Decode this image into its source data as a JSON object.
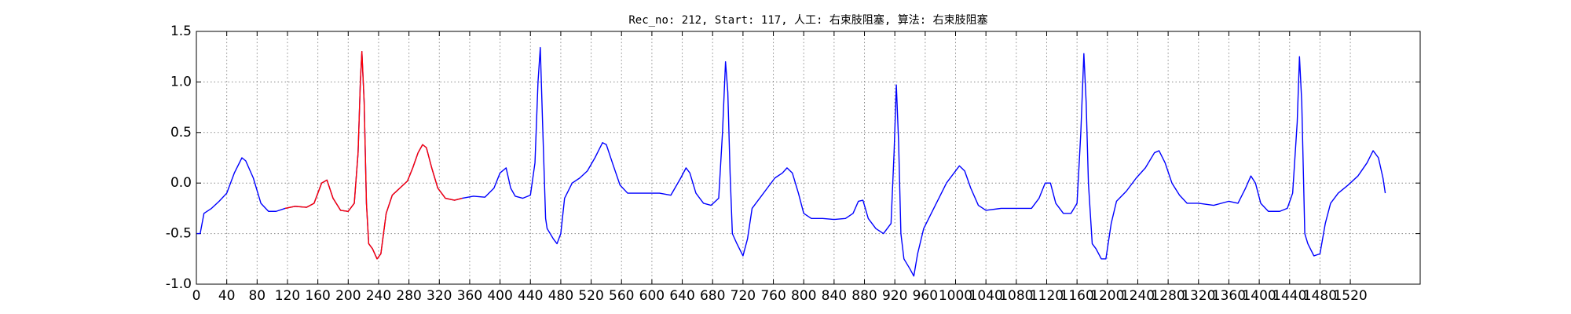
{
  "chart_data": {
    "type": "line",
    "title": "Rec_no: 212, Start: 117, 人工: 右束肢阻塞, 算法: 右束肢阻塞",
    "xlim": [
      0,
      1612
    ],
    "ylim": [
      -1.0,
      1.5
    ],
    "xticks": [
      0,
      40,
      80,
      120,
      160,
      200,
      240,
      280,
      320,
      360,
      400,
      440,
      480,
      520,
      560,
      600,
      640,
      680,
      720,
      760,
      800,
      840,
      880,
      920,
      960,
      1000,
      1040,
      1080,
      1120,
      1160,
      1200,
      1240,
      1280,
      1320,
      1360,
      1400,
      1440,
      1480,
      1520
    ],
    "yticks": [
      {
        "value": -1.0,
        "label": "-1.0"
      },
      -0.5,
      {
        "value": 0.0,
        "label": "0.0"
      },
      0.5,
      {
        "value": 1.0,
        "label": "1.0"
      },
      {
        "value": 1.5,
        "label": "1.5"
      }
    ],
    "grid": true,
    "series": [
      {
        "color": "#0000ff",
        "x": [
          0,
          5,
          10,
          20,
          30,
          40,
          50,
          60,
          65,
          75,
          85,
          95,
          105,
          117,
          130,
          145,
          155,
          165,
          172,
          180,
          190,
          200,
          208,
          213,
          216,
          218,
          221,
          224,
          227,
          232,
          238,
          243,
          250,
          258,
          268,
          278,
          285,
          292,
          298,
          303,
          310,
          318,
          328,
          340,
          350,
          365,
          380,
          392,
          400,
          408,
          414,
          420,
          430,
          440,
          446,
          450,
          453,
          456,
          460,
          462,
          470,
          475,
          480,
          485,
          495,
          505,
          515,
          525,
          535,
          540,
          548,
          558,
          568,
          580,
          595,
          610,
          625,
          638,
          645,
          650,
          658,
          668,
          678,
          688,
          693,
          697,
          700,
          703,
          706,
          712,
          720,
          726,
          732,
          742,
          752,
          762,
          772,
          778,
          785,
          793,
          800,
          810,
          825,
          840,
          855,
          865,
          872,
          878,
          885,
          895,
          905,
          915,
          919,
          922,
          925,
          928,
          932,
          940,
          945,
          950,
          958,
          968,
          978,
          988,
          998,
          1005,
          1012,
          1020,
          1030,
          1040,
          1060,
          1080,
          1100,
          1110,
          1118,
          1125,
          1132,
          1142,
          1152,
          1160,
          1165,
          1169,
          1172,
          1175,
          1180,
          1185,
          1192,
          1198,
          1205,
          1212,
          1225,
          1238,
          1250,
          1262,
          1268,
          1276,
          1285,
          1295,
          1305,
          1320,
          1340,
          1360,
          1372,
          1382,
          1389,
          1395,
          1402,
          1412,
          1427,
          1437,
          1444,
          1450,
          1453,
          1456,
          1460,
          1464,
          1472,
          1480,
          1487,
          1494,
          1504,
          1517,
          1530,
          1542,
          1550,
          1557,
          1563,
          1566
        ],
        "values": [
          -0.5,
          -0.5,
          -0.3,
          -0.25,
          -0.18,
          -0.1,
          0.1,
          0.25,
          0.22,
          0.05,
          -0.2,
          -0.28,
          -0.28,
          -0.25,
          -0.23,
          -0.24,
          -0.2,
          0,
          0.03,
          -0.15,
          -0.27,
          -0.28,
          -0.2,
          0.3,
          1.0,
          1.3,
          0.8,
          -0.2,
          -0.6,
          -0.65,
          -0.75,
          -0.7,
          -0.3,
          -0.12,
          -0.05,
          0.02,
          0.15,
          0.3,
          0.38,
          0.35,
          0.15,
          -0.05,
          -0.15,
          -0.17,
          -0.15,
          -0.13,
          -0.14,
          -0.05,
          0.1,
          0.15,
          -0.05,
          -0.13,
          -0.15,
          -0.12,
          0.2,
          1.0,
          1.34,
          0.6,
          -0.35,
          -0.45,
          -0.55,
          -0.6,
          -0.5,
          -0.15,
          0,
          0.05,
          0.12,
          0.25,
          0.4,
          0.38,
          0.2,
          -0.02,
          -0.1,
          -0.1,
          -0.1,
          -0.1,
          -0.12,
          0.05,
          0.15,
          0.1,
          -0.1,
          -0.2,
          -0.22,
          -0.15,
          0.5,
          1.2,
          0.9,
          0.1,
          -0.5,
          -0.6,
          -0.72,
          -0.55,
          -0.25,
          -0.15,
          -0.05,
          0.05,
          0.1,
          0.15,
          0.1,
          -0.1,
          -0.3,
          -0.35,
          -0.35,
          -0.36,
          -0.35,
          -0.3,
          -0.18,
          -0.17,
          -0.35,
          -0.45,
          -0.5,
          -0.4,
          0.3,
          0.97,
          0.4,
          -0.5,
          -0.75,
          -0.85,
          -0.92,
          -0.7,
          -0.45,
          -0.3,
          -0.15,
          0,
          0.1,
          0.17,
          0.12,
          -0.05,
          -0.22,
          -0.27,
          -0.25,
          -0.25,
          -0.25,
          -0.15,
          0,
          0,
          -0.2,
          -0.3,
          -0.3,
          -0.2,
          0.5,
          1.28,
          0.8,
          0,
          -0.6,
          -0.65,
          -0.75,
          -0.75,
          -0.4,
          -0.18,
          -0.08,
          0.05,
          0.15,
          0.3,
          0.32,
          0.2,
          0,
          -0.12,
          -0.2,
          -0.2,
          -0.22,
          -0.18,
          -0.2,
          -0.05,
          0.07,
          0,
          -0.2,
          -0.28,
          -0.28,
          -0.25,
          -0.1,
          0.6,
          1.25,
          0.8,
          -0.5,
          -0.6,
          -0.72,
          -0.7,
          -0.4,
          -0.2,
          -0.1,
          -0.02,
          0.07,
          0.2,
          0.32,
          0.25,
          0.05,
          -0.1
        ]
      },
      {
        "color": "#ff0000",
        "x": [
          117,
          130,
          145,
          155,
          165,
          172,
          180,
          190,
          200,
          208,
          213,
          216,
          218,
          221,
          224,
          227,
          232,
          238,
          243,
          250,
          258,
          268,
          278,
          285,
          292,
          298,
          303,
          310,
          318,
          328,
          340,
          350
        ],
        "values": [
          -0.25,
          -0.23,
          -0.24,
          -0.2,
          0,
          0.03,
          -0.15,
          -0.27,
          -0.28,
          -0.2,
          0.3,
          1.0,
          1.3,
          0.8,
          -0.2,
          -0.6,
          -0.65,
          -0.75,
          -0.7,
          -0.3,
          -0.12,
          -0.05,
          0.02,
          0.15,
          0.3,
          0.38,
          0.35,
          0.15,
          -0.05,
          -0.15,
          -0.17,
          -0.15
        ]
      }
    ]
  }
}
